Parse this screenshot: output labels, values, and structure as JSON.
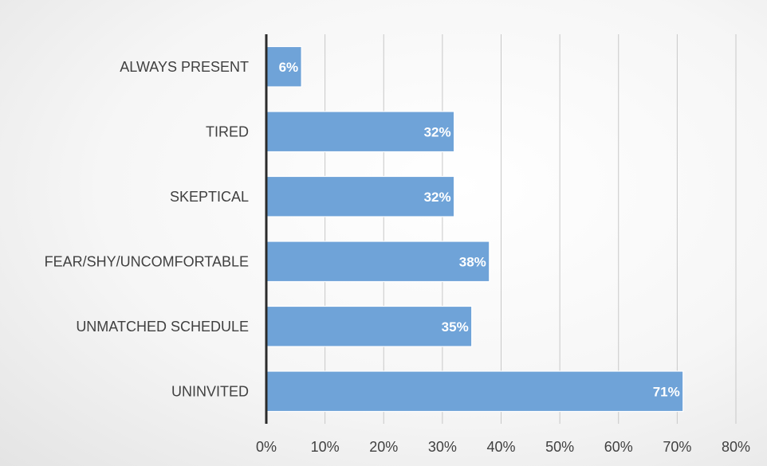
{
  "chart_data": {
    "type": "bar",
    "orientation": "horizontal",
    "categories": [
      "ALWAYS PRESENT",
      "TIRED",
      "SKEPTICAL",
      "FEAR/SHY/UNCOMFORTABLE",
      "UNMATCHED SCHEDULE",
      "UNINVITED"
    ],
    "values": [
      6,
      32,
      32,
      38,
      35,
      71
    ],
    "data_labels": [
      "6%",
      "32%",
      "32%",
      "38%",
      "35%",
      "71%"
    ],
    "xlim": [
      0,
      80
    ],
    "x_ticks": [
      0,
      10,
      20,
      30,
      40,
      50,
      60,
      70,
      80
    ],
    "x_tick_labels": [
      "0%",
      "10%",
      "20%",
      "30%",
      "40%",
      "50%",
      "60%",
      "70%",
      "80%"
    ],
    "title": "",
    "xlabel": "",
    "ylabel": "",
    "grid": "vertical",
    "legend": "none",
    "colors": {
      "bar": "#6fa3d8",
      "bar_edge": "#ffffff",
      "axis": "#2b2b2b",
      "grid": "#c8c8c8"
    }
  }
}
